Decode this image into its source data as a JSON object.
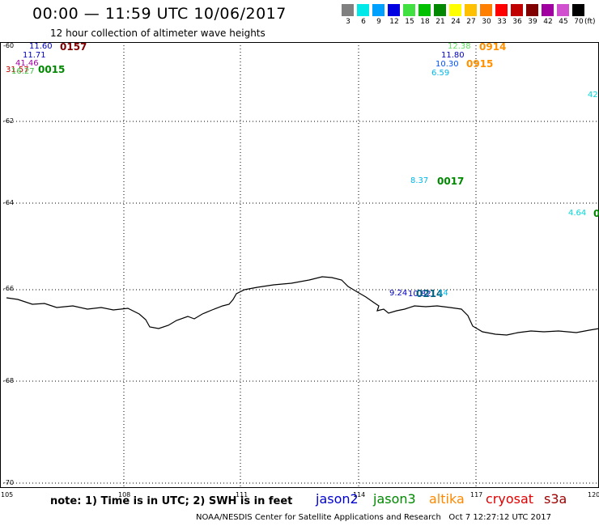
{
  "header": {
    "title": "00:00 — 11:59 UTC 10/06/2017",
    "subtitle": "12 hour collection of altimeter wave heights"
  },
  "legend": {
    "unit": "(ft)",
    "items": [
      {
        "label": "3",
        "color": "#808080"
      },
      {
        "label": "6",
        "color": "#00e8e8"
      },
      {
        "label": "9",
        "color": "#00a0ff"
      },
      {
        "label": "12",
        "color": "#0000e0"
      },
      {
        "label": "15",
        "color": "#40e040"
      },
      {
        "label": "18",
        "color": "#00c000"
      },
      {
        "label": "21",
        "color": "#008800"
      },
      {
        "label": "24",
        "color": "#ffff00"
      },
      {
        "label": "27",
        "color": "#ffc000"
      },
      {
        "label": "30",
        "color": "#ff8000"
      },
      {
        "label": "33",
        "color": "#ff0000"
      },
      {
        "label": "36",
        "color": "#c00000"
      },
      {
        "label": "39",
        "color": "#800000"
      },
      {
        "label": "42",
        "color": "#a000a0"
      },
      {
        "label": "45",
        "color": "#d050d0"
      },
      {
        "label": "70",
        "color": "#000000"
      }
    ]
  },
  "map": {
    "lat_labels": [
      "-60",
      "-62",
      "-64",
      "-66",
      "-68",
      "-70"
    ],
    "lon_labels": [
      "105",
      "108",
      "111",
      "114",
      "117",
      "120"
    ],
    "observations": [
      {
        "text": "11.60",
        "color": "#0000c0"
      },
      {
        "text": "0157",
        "color": "#800000"
      },
      {
        "text": "11.71",
        "color": "#0000c0"
      },
      {
        "text": "41.46",
        "color": "#a000a0"
      },
      {
        "text": "31.57",
        "color": "#c00000"
      },
      {
        "text": "16.27",
        "color": "#40c040"
      },
      {
        "text": "0015",
        "color": "#008800"
      },
      {
        "text": "12.38",
        "color": "#60e060"
      },
      {
        "text": "0914",
        "color": "#ff9000"
      },
      {
        "text": "11.80",
        "color": "#0000c0"
      },
      {
        "text": "10.30",
        "color": "#0050ff"
      },
      {
        "text": "0915",
        "color": "#ff9000"
      },
      {
        "text": "6.59",
        "color": "#00b8e8"
      },
      {
        "text": "42",
        "color": "#00d8d8"
      },
      {
        "text": "8.37",
        "color": "#00b8e8"
      },
      {
        "text": "0017",
        "color": "#008800"
      },
      {
        "text": "4.64",
        "color": "#00d8d8"
      },
      {
        "text": "0",
        "color": "#008800"
      },
      {
        "text": "9.24",
        "color": "#0000c0"
      },
      {
        "text": "10.82",
        "color": "#0000c0"
      },
      {
        "text": "0214",
        "color": "#006080"
      },
      {
        "text": "14",
        "color": "#00b8e8"
      }
    ]
  },
  "footer": {
    "note": "note: 1) Time is in UTC; 2) SWH is in feet",
    "satellites": [
      {
        "name": "jason2",
        "color": "#0000d0"
      },
      {
        "name": "jason3",
        "color": "#008800"
      },
      {
        "name": "altika",
        "color": "#ff8800"
      },
      {
        "name": "cryosat",
        "color": "#e00000"
      },
      {
        "name": "s3a",
        "color": "#a00000"
      }
    ],
    "credit": "NOAA/NESDIS Center for Satellite Applications and Research",
    "timestamp": "Oct  7 12:27:12 UTC 2017"
  }
}
